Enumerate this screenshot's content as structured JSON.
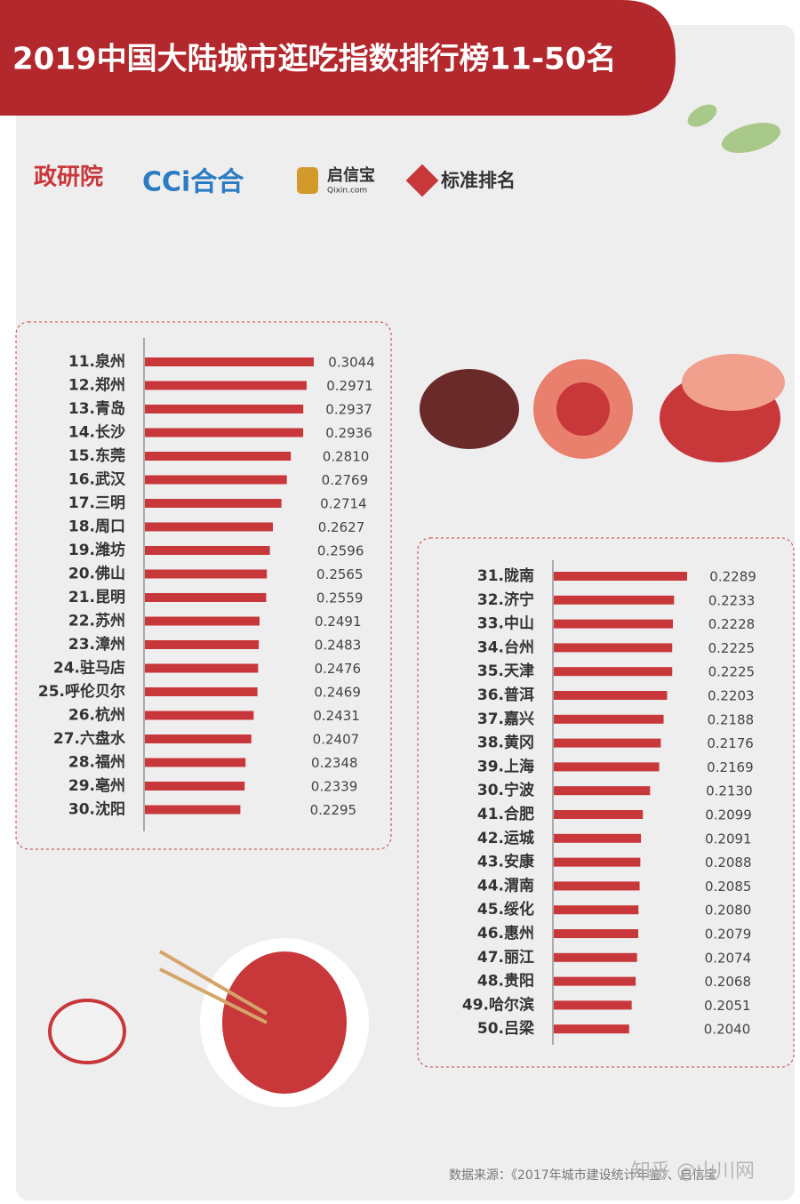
{
  "header": {
    "title": "2019中国大陆城市逛吃指数排行榜11-50名"
  },
  "logos": [
    "政研院",
    "CCi合合",
    "启信宝",
    "Qixin.com",
    "标准排名"
  ],
  "footer": "数据来源：《2017年城市建设统计年鉴》、启信宝",
  "watermark": "知乎 @山川网",
  "chart_data": [
    {
      "type": "bar",
      "orientation": "horizontal",
      "color": "#c8373a",
      "categories": [
        "11.泉州",
        "12.郑州",
        "13.青岛",
        "14.长沙",
        "15.东莞",
        "16.武汉",
        "17.三明",
        "18.周口",
        "19.潍坊",
        "20.佛山",
        "21.昆明",
        "22.苏州",
        "23.漳州",
        "24.驻马店",
        "25.呼伦贝尔",
        "26.杭州",
        "27.六盘水",
        "28.福州",
        "29.亳州",
        "30.沈阳"
      ],
      "values": [
        0.3044,
        0.2971,
        0.2937,
        0.2936,
        0.281,
        0.2769,
        0.2714,
        0.2627,
        0.2596,
        0.2565,
        0.2559,
        0.2491,
        0.2483,
        0.2476,
        0.2469,
        0.2431,
        0.2407,
        0.2348,
        0.2339,
        0.2295
      ],
      "value_labels": [
        "0.3044",
        "0.2971",
        "0.2937",
        "0.2936",
        "0.2810",
        "0.2769",
        "0.2714",
        "0.2627",
        "0.2596",
        "0.2565",
        "0.2559",
        "0.2491",
        "0.2483",
        "0.2476",
        "0.2469",
        "0.2431",
        "0.2407",
        "0.2348",
        "0.2339",
        "0.2295"
      ]
    },
    {
      "type": "bar",
      "orientation": "horizontal",
      "color": "#c8373a",
      "categories": [
        "31.陇南",
        "32.济宁",
        "33.中山",
        "34.台州",
        "35.天津",
        "36.普洱",
        "37.嘉兴",
        "38.黄冈",
        "39.上海",
        "30.宁波",
        "41.合肥",
        "42.运城",
        "43.安康",
        "44.渭南",
        "45.绥化",
        "46.惠州",
        "47.丽江",
        "48.贵阳",
        "49.哈尔滨",
        "50.吕梁"
      ],
      "values": [
        0.2289,
        0.2233,
        0.2228,
        0.2225,
        0.2225,
        0.2203,
        0.2188,
        0.2176,
        0.2169,
        0.213,
        0.2099,
        0.2091,
        0.2088,
        0.2085,
        0.208,
        0.2079,
        0.2074,
        0.2068,
        0.2051,
        0.204
      ],
      "value_labels": [
        "0.2289",
        "0.2233",
        "0.2228",
        "0.2225",
        "0.2225",
        "0.2203",
        "0.2188",
        "0.2176",
        "0.2169",
        "0.2130",
        "0.2099",
        "0.2091",
        "0.2088",
        "0.2085",
        "0.2080",
        "0.2079",
        "0.2074",
        "0.2068",
        "0.2051",
        "0.2040"
      ]
    }
  ]
}
